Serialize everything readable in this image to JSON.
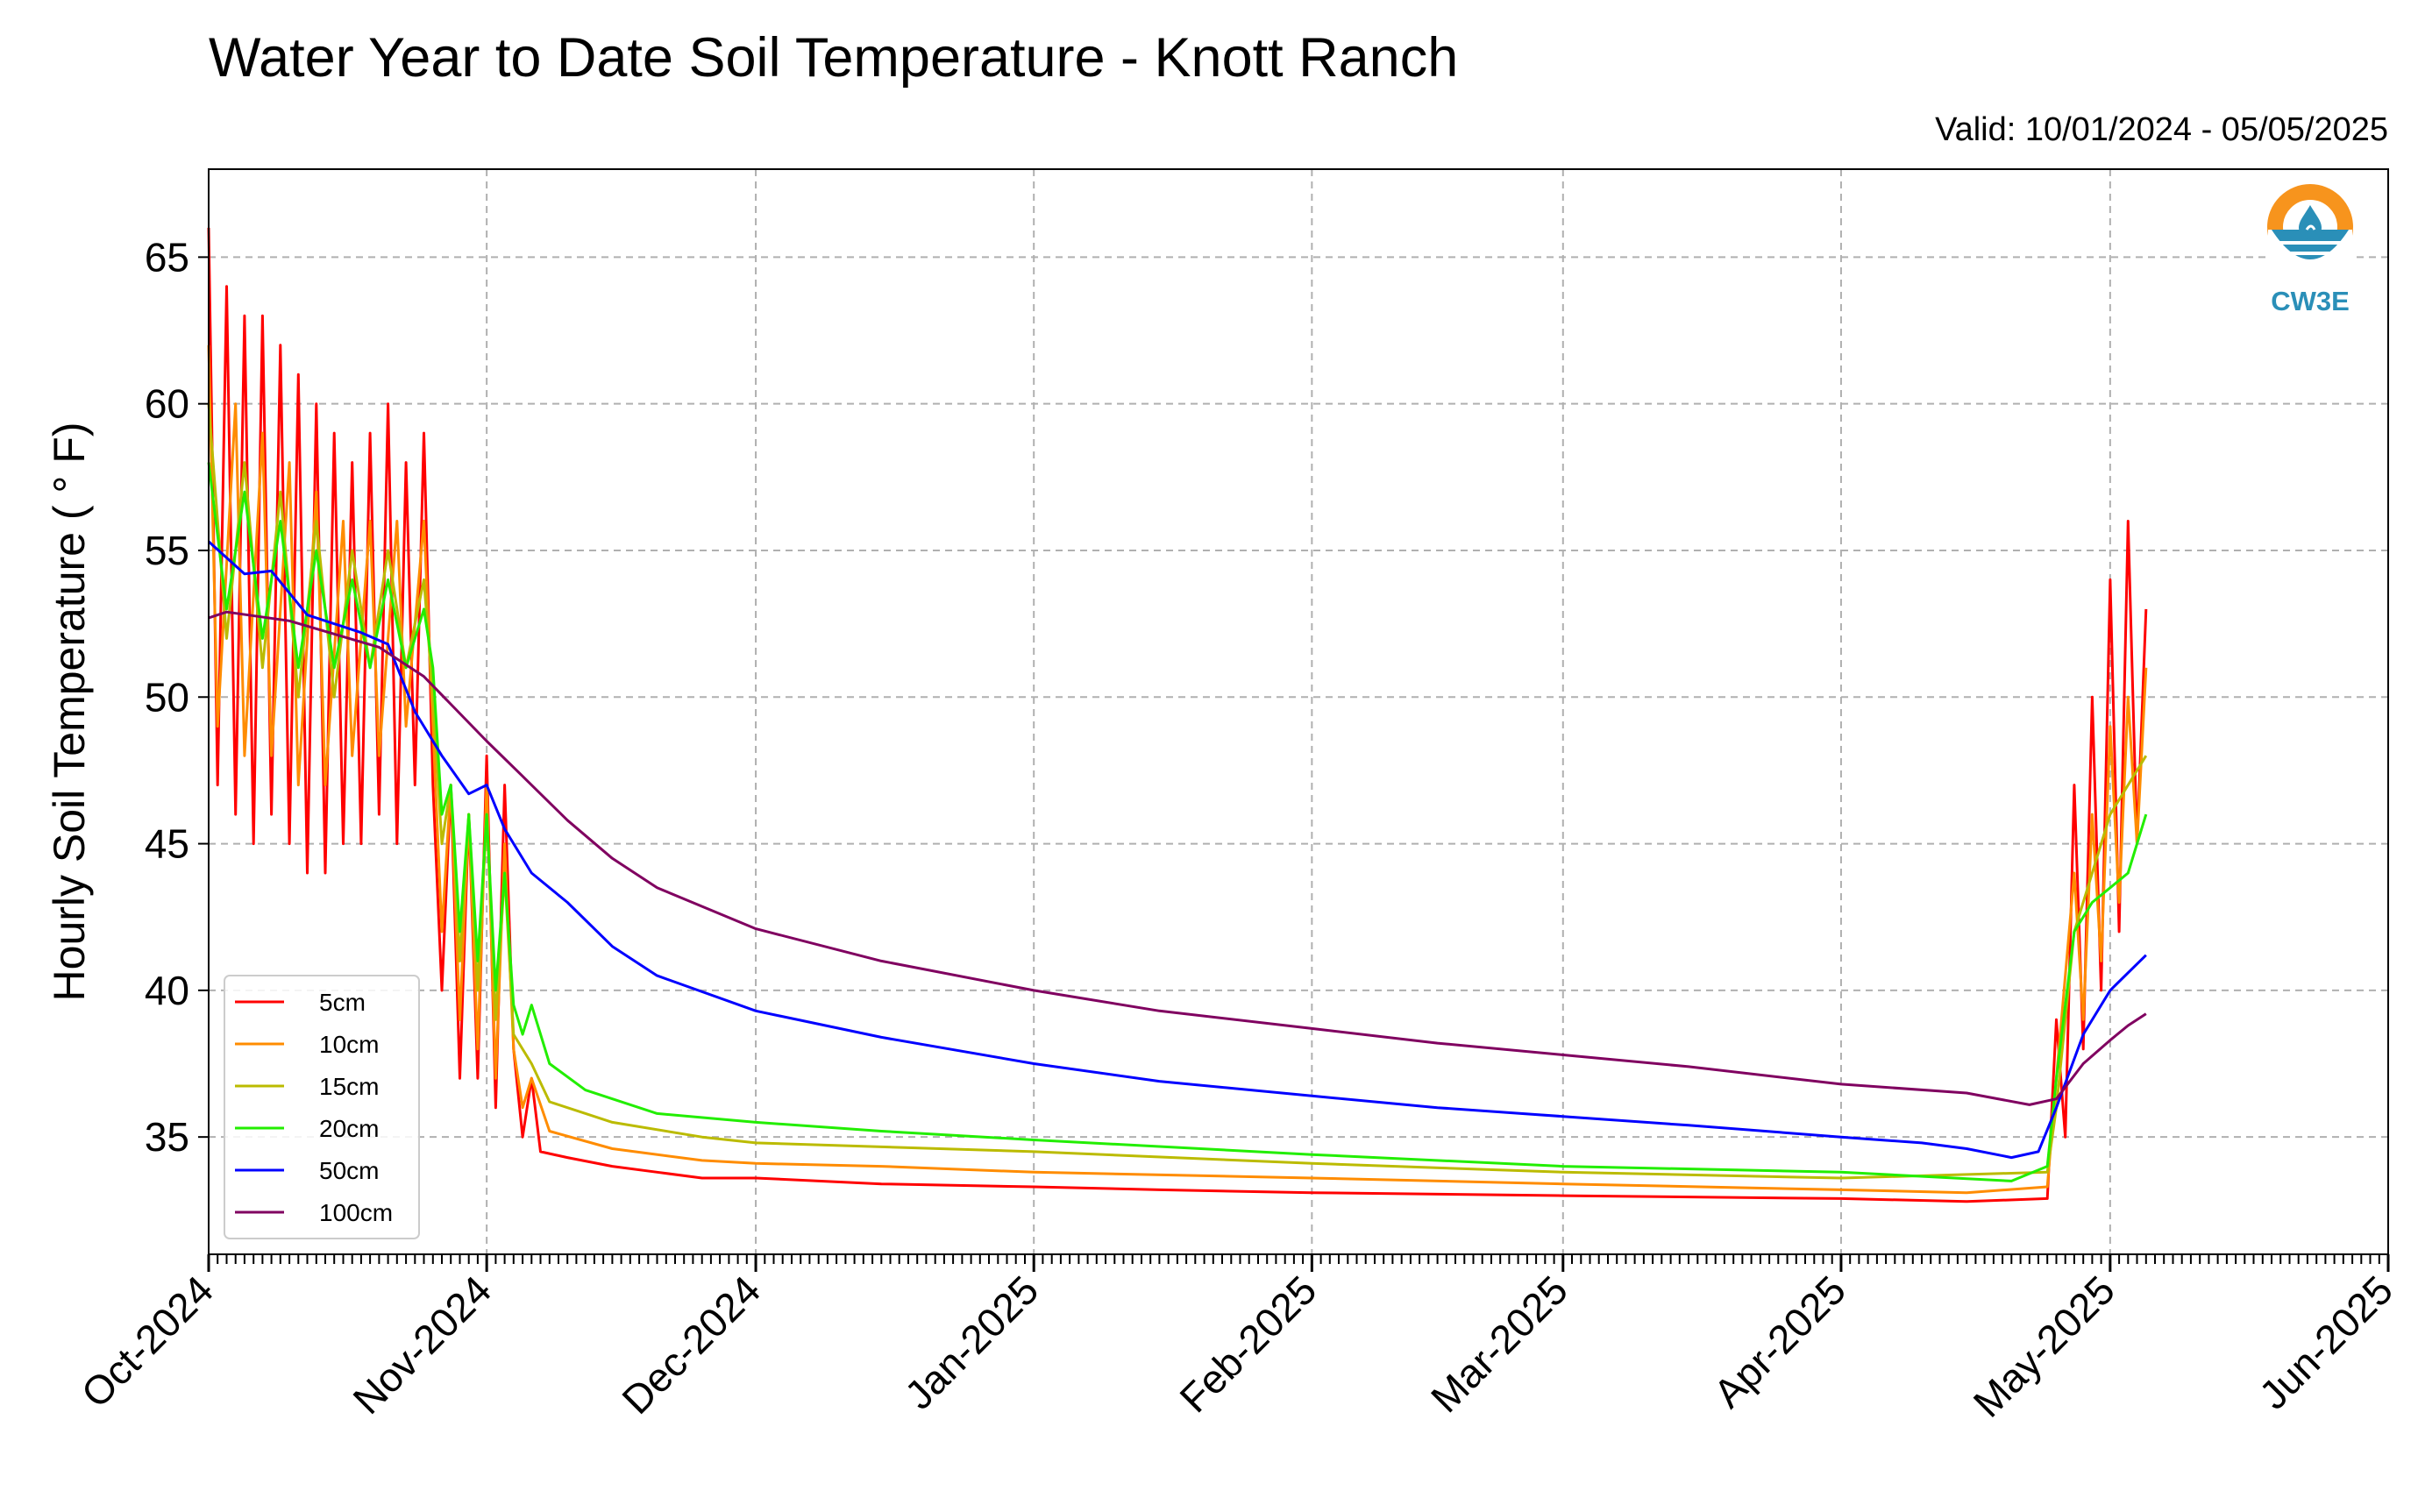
{
  "chart_data": {
    "type": "line",
    "title": "Water Year to Date Soil Temperature - Knott Ranch",
    "subtitle": "Valid: 10/01/2024 - 05/05/2025",
    "xlabel": "",
    "ylabel": "Hourly Soil Temperature ( ° F)",
    "ylim": [
      31,
      68
    ],
    "xlim": [
      "2024-10-01",
      "2025-06-01"
    ],
    "x_ticks": [
      {
        "date": "2024-10-01",
        "label": "Oct-2024"
      },
      {
        "date": "2024-11-01",
        "label": "Nov-2024"
      },
      {
        "date": "2024-12-01",
        "label": "Dec-2024"
      },
      {
        "date": "2025-01-01",
        "label": "Jan-2025"
      },
      {
        "date": "2025-02-01",
        "label": "Feb-2025"
      },
      {
        "date": "2025-03-01",
        "label": "Mar-2025"
      },
      {
        "date": "2025-04-01",
        "label": "Apr-2025"
      },
      {
        "date": "2025-05-01",
        "label": "May-2025"
      },
      {
        "date": "2025-06-01",
        "label": "Jun-2025"
      }
    ],
    "y_ticks": [
      35,
      40,
      45,
      50,
      55,
      60,
      65
    ],
    "grid": true,
    "legend_position": "lower-left",
    "logo_text": "CW3E",
    "series": [
      {
        "name": "5cm",
        "color": "#ff0000",
        "points": [
          [
            "2024-10-01",
            66
          ],
          [
            "2024-10-02",
            47
          ],
          [
            "2024-10-03",
            64
          ],
          [
            "2024-10-04",
            46
          ],
          [
            "2024-10-05",
            63
          ],
          [
            "2024-10-06",
            45
          ],
          [
            "2024-10-07",
            63
          ],
          [
            "2024-10-08",
            46
          ],
          [
            "2024-10-09",
            62
          ],
          [
            "2024-10-10",
            45
          ],
          [
            "2024-10-11",
            61
          ],
          [
            "2024-10-12",
            44
          ],
          [
            "2024-10-13",
            60
          ],
          [
            "2024-10-14",
            44
          ],
          [
            "2024-10-15",
            59
          ],
          [
            "2024-10-16",
            45
          ],
          [
            "2024-10-17",
            58
          ],
          [
            "2024-10-18",
            45
          ],
          [
            "2024-10-19",
            59
          ],
          [
            "2024-10-20",
            46
          ],
          [
            "2024-10-21",
            60
          ],
          [
            "2024-10-22",
            45
          ],
          [
            "2024-10-23",
            58
          ],
          [
            "2024-10-24",
            47
          ],
          [
            "2024-10-25",
            59
          ],
          [
            "2024-10-26",
            47
          ],
          [
            "2024-10-27",
            40
          ],
          [
            "2024-10-28",
            47
          ],
          [
            "2024-10-29",
            37
          ],
          [
            "2024-10-30",
            46
          ],
          [
            "2024-10-31",
            37
          ],
          [
            "2024-11-01",
            48
          ],
          [
            "2024-11-02",
            36
          ],
          [
            "2024-11-03",
            47
          ],
          [
            "2024-11-04",
            38
          ],
          [
            "2024-11-05",
            35
          ],
          [
            "2024-11-06",
            37
          ],
          [
            "2024-11-07",
            34.5
          ],
          [
            "2024-11-10",
            34.3
          ],
          [
            "2024-11-15",
            34.0
          ],
          [
            "2024-11-20",
            33.8
          ],
          [
            "2024-11-25",
            33.6
          ],
          [
            "2024-12-01",
            33.6
          ],
          [
            "2024-12-15",
            33.4
          ],
          [
            "2025-01-01",
            33.3
          ],
          [
            "2025-01-15",
            33.2
          ],
          [
            "2025-02-01",
            33.1
          ],
          [
            "2025-03-01",
            33.0
          ],
          [
            "2025-04-01",
            32.9
          ],
          [
            "2025-04-15",
            32.8
          ],
          [
            "2025-04-24",
            32.9
          ],
          [
            "2025-04-25",
            39
          ],
          [
            "2025-04-26",
            35
          ],
          [
            "2025-04-27",
            47
          ],
          [
            "2025-04-28",
            38
          ],
          [
            "2025-04-29",
            50
          ],
          [
            "2025-04-30",
            40
          ],
          [
            "2025-05-01",
            54
          ],
          [
            "2025-05-02",
            42
          ],
          [
            "2025-05-03",
            56
          ],
          [
            "2025-05-04",
            45
          ],
          [
            "2025-05-05",
            53
          ]
        ]
      },
      {
        "name": "10cm",
        "color": "#ff8c00",
        "points": [
          [
            "2024-10-01",
            62
          ],
          [
            "2024-10-02",
            49
          ],
          [
            "2024-10-04",
            60
          ],
          [
            "2024-10-05",
            48
          ],
          [
            "2024-10-07",
            59
          ],
          [
            "2024-10-08",
            48
          ],
          [
            "2024-10-10",
            58
          ],
          [
            "2024-10-11",
            47
          ],
          [
            "2024-10-13",
            57
          ],
          [
            "2024-10-14",
            47
          ],
          [
            "2024-10-16",
            56
          ],
          [
            "2024-10-17",
            48
          ],
          [
            "2024-10-19",
            56
          ],
          [
            "2024-10-20",
            48
          ],
          [
            "2024-10-22",
            56
          ],
          [
            "2024-10-23",
            49
          ],
          [
            "2024-10-25",
            56
          ],
          [
            "2024-10-26",
            49
          ],
          [
            "2024-10-27",
            42
          ],
          [
            "2024-10-28",
            47
          ],
          [
            "2024-10-29",
            39
          ],
          [
            "2024-10-30",
            46
          ],
          [
            "2024-10-31",
            38
          ],
          [
            "2024-11-01",
            47
          ],
          [
            "2024-11-02",
            37
          ],
          [
            "2024-11-03",
            45
          ],
          [
            "2024-11-04",
            38
          ],
          [
            "2024-11-05",
            36
          ],
          [
            "2024-11-06",
            37
          ],
          [
            "2024-11-08",
            35.2
          ],
          [
            "2024-11-15",
            34.6
          ],
          [
            "2024-11-25",
            34.2
          ],
          [
            "2024-12-01",
            34.1
          ],
          [
            "2024-12-15",
            34.0
          ],
          [
            "2025-01-01",
            33.8
          ],
          [
            "2025-02-01",
            33.6
          ],
          [
            "2025-03-01",
            33.4
          ],
          [
            "2025-04-01",
            33.2
          ],
          [
            "2025-04-15",
            33.1
          ],
          [
            "2025-04-24",
            33.3
          ],
          [
            "2025-04-25",
            37
          ],
          [
            "2025-04-27",
            44
          ],
          [
            "2025-04-28",
            39
          ],
          [
            "2025-04-29",
            46
          ],
          [
            "2025-04-30",
            41
          ],
          [
            "2025-05-01",
            49
          ],
          [
            "2025-05-02",
            43
          ],
          [
            "2025-05-03",
            50
          ],
          [
            "2025-05-04",
            45
          ],
          [
            "2025-05-05",
            51
          ]
        ]
      },
      {
        "name": "15cm",
        "color": "#bbbb00",
        "points": [
          [
            "2024-10-01",
            60
          ],
          [
            "2024-10-03",
            52
          ],
          [
            "2024-10-05",
            58
          ],
          [
            "2024-10-07",
            51
          ],
          [
            "2024-10-09",
            57
          ],
          [
            "2024-10-11",
            50
          ],
          [
            "2024-10-13",
            56
          ],
          [
            "2024-10-15",
            50
          ],
          [
            "2024-10-17",
            55
          ],
          [
            "2024-10-19",
            51
          ],
          [
            "2024-10-21",
            55
          ],
          [
            "2024-10-23",
            51
          ],
          [
            "2024-10-25",
            54
          ],
          [
            "2024-10-26",
            50
          ],
          [
            "2024-10-27",
            45
          ],
          [
            "2024-10-28",
            47
          ],
          [
            "2024-10-29",
            41
          ],
          [
            "2024-10-30",
            46
          ],
          [
            "2024-10-31",
            40
          ],
          [
            "2024-11-01",
            46
          ],
          [
            "2024-11-02",
            39
          ],
          [
            "2024-11-03",
            44
          ],
          [
            "2024-11-04",
            38.5
          ],
          [
            "2024-11-06",
            37.5
          ],
          [
            "2024-11-08",
            36.2
          ],
          [
            "2024-11-15",
            35.5
          ],
          [
            "2024-11-25",
            35.0
          ],
          [
            "2024-12-01",
            34.8
          ],
          [
            "2025-01-01",
            34.5
          ],
          [
            "2025-02-01",
            34.1
          ],
          [
            "2025-03-01",
            33.8
          ],
          [
            "2025-04-01",
            33.6
          ],
          [
            "2025-04-24",
            33.8
          ],
          [
            "2025-04-25",
            36
          ],
          [
            "2025-04-27",
            42
          ],
          [
            "2025-04-29",
            44
          ],
          [
            "2025-05-01",
            46
          ],
          [
            "2025-05-03",
            47
          ],
          [
            "2025-05-05",
            48
          ]
        ]
      },
      {
        "name": "20cm",
        "color": "#22ee00",
        "points": [
          [
            "2024-10-01",
            58
          ],
          [
            "2024-10-03",
            53
          ],
          [
            "2024-10-05",
            57
          ],
          [
            "2024-10-07",
            52
          ],
          [
            "2024-10-09",
            56
          ],
          [
            "2024-10-11",
            51
          ],
          [
            "2024-10-13",
            55
          ],
          [
            "2024-10-15",
            51
          ],
          [
            "2024-10-17",
            54
          ],
          [
            "2024-10-19",
            51
          ],
          [
            "2024-10-21",
            54
          ],
          [
            "2024-10-23",
            51
          ],
          [
            "2024-10-25",
            53
          ],
          [
            "2024-10-26",
            51
          ],
          [
            "2024-10-27",
            46
          ],
          [
            "2024-10-28",
            47
          ],
          [
            "2024-10-29",
            42
          ],
          [
            "2024-10-30",
            46
          ],
          [
            "2024-10-31",
            41
          ],
          [
            "2024-11-01",
            46
          ],
          [
            "2024-11-02",
            40
          ],
          [
            "2024-11-03",
            44
          ],
          [
            "2024-11-04",
            39.5
          ],
          [
            "2024-11-05",
            38.5
          ],
          [
            "2024-11-06",
            39.5
          ],
          [
            "2024-11-08",
            37.5
          ],
          [
            "2024-11-12",
            36.6
          ],
          [
            "2024-11-20",
            35.8
          ],
          [
            "2024-12-01",
            35.5
          ],
          [
            "2024-12-15",
            35.2
          ],
          [
            "2025-01-01",
            34.9
          ],
          [
            "2025-02-01",
            34.4
          ],
          [
            "2025-03-01",
            34.0
          ],
          [
            "2025-04-01",
            33.8
          ],
          [
            "2025-04-20",
            33.5
          ],
          [
            "2025-04-24",
            34
          ],
          [
            "2025-04-25",
            37
          ],
          [
            "2025-04-27",
            42
          ],
          [
            "2025-04-29",
            43
          ],
          [
            "2025-05-01",
            43.5
          ],
          [
            "2025-05-03",
            44
          ],
          [
            "2025-05-05",
            46
          ]
        ]
      },
      {
        "name": "50cm",
        "color": "#0000ff",
        "points": [
          [
            "2024-10-01",
            55.3
          ],
          [
            "2024-10-05",
            54.2
          ],
          [
            "2024-10-08",
            54.3
          ],
          [
            "2024-10-12",
            52.8
          ],
          [
            "2024-10-18",
            52.2
          ],
          [
            "2024-10-21",
            51.8
          ],
          [
            "2024-10-24",
            49.5
          ],
          [
            "2024-10-27",
            48.0
          ],
          [
            "2024-10-30",
            46.7
          ],
          [
            "2024-11-01",
            47.0
          ],
          [
            "2024-11-03",
            45.5
          ],
          [
            "2024-11-06",
            44.0
          ],
          [
            "2024-11-10",
            43.0
          ],
          [
            "2024-11-15",
            41.5
          ],
          [
            "2024-11-20",
            40.5
          ],
          [
            "2024-12-01",
            39.3
          ],
          [
            "2024-12-15",
            38.4
          ],
          [
            "2025-01-01",
            37.5
          ],
          [
            "2025-01-15",
            36.9
          ],
          [
            "2025-02-01",
            36.4
          ],
          [
            "2025-02-15",
            36.0
          ],
          [
            "2025-03-01",
            35.7
          ],
          [
            "2025-03-15",
            35.4
          ],
          [
            "2025-04-01",
            35.0
          ],
          [
            "2025-04-10",
            34.8
          ],
          [
            "2025-04-15",
            34.6
          ],
          [
            "2025-04-20",
            34.3
          ],
          [
            "2025-04-23",
            34.5
          ],
          [
            "2025-04-25",
            36
          ],
          [
            "2025-04-28",
            38.5
          ],
          [
            "2025-05-01",
            40.0
          ],
          [
            "2025-05-03",
            40.6
          ],
          [
            "2025-05-05",
            41.2
          ]
        ]
      },
      {
        "name": "100cm",
        "color": "#800060",
        "points": [
          [
            "2024-10-01",
            52.7
          ],
          [
            "2024-10-03",
            52.9
          ],
          [
            "2024-10-10",
            52.6
          ],
          [
            "2024-10-20",
            51.7
          ],
          [
            "2024-10-25",
            50.7
          ],
          [
            "2024-11-01",
            48.5
          ],
          [
            "2024-11-05",
            47.3
          ],
          [
            "2024-11-10",
            45.8
          ],
          [
            "2024-11-15",
            44.5
          ],
          [
            "2024-11-20",
            43.5
          ],
          [
            "2024-12-01",
            42.1
          ],
          [
            "2024-12-15",
            41.0
          ],
          [
            "2025-01-01",
            40.0
          ],
          [
            "2025-01-15",
            39.3
          ],
          [
            "2025-02-01",
            38.7
          ],
          [
            "2025-02-15",
            38.2
          ],
          [
            "2025-03-01",
            37.8
          ],
          [
            "2025-03-15",
            37.4
          ],
          [
            "2025-04-01",
            36.8
          ],
          [
            "2025-04-15",
            36.5
          ],
          [
            "2025-04-22",
            36.1
          ],
          [
            "2025-04-25",
            36.3
          ],
          [
            "2025-04-28",
            37.5
          ],
          [
            "2025-05-01",
            38.3
          ],
          [
            "2025-05-03",
            38.8
          ],
          [
            "2025-05-05",
            39.2
          ]
        ]
      }
    ]
  }
}
